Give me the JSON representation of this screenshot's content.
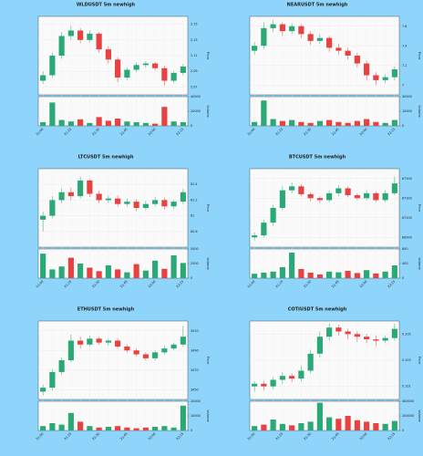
{
  "chart_data": [
    {
      "type": "candlestick",
      "title": "WLDUSDT 5m newhigh",
      "ylabel": "Price",
      "volume_label": "Volume",
      "grid": true,
      "up_color": "#2aa876",
      "down_color": "#e8413f",
      "categories": [
        "21:00",
        null,
        null,
        "21:15",
        null,
        null,
        "21:30",
        null,
        null,
        "21:45",
        null,
        null,
        "22:00",
        null,
        null,
        "22:15"
      ],
      "open": [
        2.078,
        2.085,
        2.11,
        2.135,
        2.142,
        2.13,
        2.138,
        2.118,
        2.105,
        2.082,
        2.092,
        2.098,
        2.1,
        2.094,
        2.078,
        2.088
      ],
      "high": [
        2.09,
        2.114,
        2.14,
        2.148,
        2.145,
        2.142,
        2.14,
        2.122,
        2.108,
        2.095,
        2.101,
        2.103,
        2.102,
        2.097,
        2.09,
        2.099
      ],
      "low": [
        2.074,
        2.082,
        2.106,
        2.13,
        2.126,
        2.127,
        2.114,
        2.1,
        2.076,
        2.079,
        2.089,
        2.095,
        2.091,
        2.072,
        2.075,
        2.085
      ],
      "close": [
        2.085,
        2.11,
        2.135,
        2.142,
        2.13,
        2.138,
        2.118,
        2.105,
        2.082,
        2.092,
        2.098,
        2.1,
        2.094,
        2.078,
        2.088,
        2.096
      ],
      "volume": [
        5000,
        32000,
        8000,
        6000,
        9000,
        4000,
        12000,
        7000,
        10000,
        6000,
        5000,
        4000,
        3000,
        26000,
        6000,
        5000
      ],
      "ylim": [
        2.06,
        2.16
      ],
      "yticks": [
        2.07,
        2.09,
        2.11,
        2.13,
        2.15
      ],
      "volume_ylim": [
        0,
        40000
      ],
      "volume_yticks": [
        0,
        20000,
        40000
      ]
    },
    {
      "type": "candlestick",
      "title": "NEARUSDT 5m newhigh",
      "ylabel": "Price",
      "volume_label": "Volume",
      "grid": true,
      "up_color": "#2aa876",
      "down_color": "#e8413f",
      "categories": [
        "21:00",
        null,
        null,
        "21:15",
        null,
        null,
        "21:30",
        null,
        null,
        "21:45",
        null,
        null,
        "22:00",
        null,
        null,
        "22:15"
      ],
      "open": [
        7.35,
        7.4,
        7.58,
        7.62,
        7.55,
        7.6,
        7.52,
        7.45,
        7.48,
        7.38,
        7.35,
        7.3,
        7.22,
        7.1,
        7.05,
        7.08
      ],
      "high": [
        7.44,
        7.64,
        7.66,
        7.64,
        7.63,
        7.62,
        7.55,
        7.52,
        7.5,
        7.42,
        7.38,
        7.33,
        7.25,
        7.13,
        7.11,
        7.19
      ],
      "low": [
        7.31,
        7.37,
        7.54,
        7.5,
        7.52,
        7.48,
        7.41,
        7.42,
        7.34,
        7.31,
        7.26,
        7.18,
        7.05,
        7.0,
        7.02,
        7.05
      ],
      "close": [
        7.4,
        7.58,
        7.62,
        7.55,
        7.6,
        7.52,
        7.45,
        7.48,
        7.38,
        7.35,
        7.3,
        7.22,
        7.1,
        7.05,
        7.08,
        7.16
      ],
      "volume": [
        4000,
        26000,
        7000,
        5000,
        6000,
        4000,
        3000,
        5000,
        6000,
        4000,
        3000,
        5000,
        7000,
        4000,
        3000,
        6000
      ],
      "ylim": [
        6.9,
        7.7
      ],
      "yticks": [
        7.0,
        7.2,
        7.4,
        7.6
      ],
      "volume_ylim": [
        0,
        30000
      ],
      "volume_yticks": [
        0,
        15000,
        30000
      ]
    },
    {
      "type": "candlestick",
      "title": "LTCUSDT 5m newhigh",
      "ylabel": "Price",
      "volume_label": "Volume",
      "grid": true,
      "up_color": "#2aa876",
      "down_color": "#e8413f",
      "categories": [
        "21:00",
        null,
        null,
        "21:15",
        null,
        null,
        "21:30",
        null,
        null,
        "21:45",
        null,
        null,
        "22:00",
        null,
        null,
        "22:15"
      ],
      "open": [
        80.95,
        81.0,
        81.2,
        81.3,
        81.25,
        81.45,
        81.28,
        81.2,
        81.22,
        81.15,
        81.18,
        81.1,
        81.15,
        81.2,
        81.12,
        81.18
      ],
      "high": [
        81.05,
        81.25,
        81.35,
        81.36,
        81.5,
        81.47,
        81.32,
        81.26,
        81.26,
        81.22,
        81.21,
        81.19,
        81.24,
        81.23,
        81.2,
        81.34
      ],
      "low": [
        80.8,
        80.97,
        81.16,
        81.2,
        81.22,
        81.24,
        81.16,
        81.16,
        81.12,
        81.12,
        81.06,
        81.07,
        81.12,
        81.08,
        81.09,
        81.15
      ],
      "close": [
        81.0,
        81.2,
        81.3,
        81.25,
        81.45,
        81.28,
        81.2,
        81.22,
        81.15,
        81.18,
        81.1,
        81.15,
        81.2,
        81.12,
        81.18,
        81.3
      ],
      "volume": [
        4200,
        1500,
        2000,
        3500,
        2500,
        1800,
        1200,
        2200,
        1500,
        1000,
        2400,
        1300,
        3000,
        1600,
        3900,
        2600
      ],
      "ylim": [
        80.6,
        81.6
      ],
      "yticks": [
        80.8,
        81.0,
        81.2,
        81.4
      ],
      "volume_ylim": [
        0,
        5000
      ],
      "volume_yticks": [
        0,
        2500,
        5000
      ]
    },
    {
      "type": "candlestick",
      "title": "BTCUSDT 5m newhigh",
      "ylabel": "Price",
      "volume_label": "Volume",
      "grid": true,
      "up_color": "#2aa876",
      "down_color": "#e8413f",
      "categories": [
        "21:00",
        null,
        null,
        "21:15",
        null,
        null,
        "21:30",
        null,
        null,
        "21:45",
        null,
        null,
        "22:00",
        null,
        null,
        "22:15"
      ],
      "open": [
        66900,
        66920,
        67050,
        67200,
        67380,
        67420,
        67340,
        67300,
        67280,
        67350,
        67400,
        67330,
        67300,
        67350,
        67280,
        67350
      ],
      "high": [
        66950,
        67080,
        67230,
        67420,
        67460,
        67440,
        67360,
        67320,
        67380,
        67430,
        67420,
        67350,
        67380,
        67370,
        67380,
        67520
      ],
      "low": [
        66870,
        66900,
        67020,
        67180,
        67350,
        67320,
        67270,
        67250,
        67260,
        67320,
        67310,
        67280,
        67280,
        67260,
        67260,
        67330
      ],
      "close": [
        66920,
        67050,
        67200,
        67380,
        67420,
        67340,
        67300,
        67280,
        67350,
        67400,
        67330,
        67300,
        67350,
        67280,
        67350,
        67450
      ],
      "volume": [
        120,
        150,
        180,
        300,
        700,
        250,
        150,
        100,
        180,
        160,
        200,
        140,
        220,
        130,
        180,
        350
      ],
      "ylim": [
        66800,
        67600
      ],
      "yticks": [
        66900,
        67100,
        67300,
        67500
      ],
      "volume_ylim": [
        0,
        800
      ],
      "volume_yticks": [
        0,
        400,
        800
      ]
    },
    {
      "type": "candlestick",
      "title": "ETHUSDT 5m newhigh",
      "ylabel": "Price",
      "volume_label": "Volume",
      "grid": true,
      "up_color": "#2aa876",
      "down_color": "#e8413f",
      "categories": [
        "21:00",
        null,
        null,
        "21:15",
        null,
        null,
        "21:30",
        null,
        null,
        "21:45",
        null,
        null,
        "22:00",
        null,
        null,
        "22:15"
      ],
      "open": [
        3448,
        3452,
        3468,
        3480,
        3500,
        3496,
        3502,
        3498,
        3500,
        3494,
        3490,
        3486,
        3482,
        3488,
        3492,
        3496
      ],
      "high": [
        3455,
        3471,
        3483,
        3506,
        3504,
        3505,
        3504,
        3502,
        3502,
        3496,
        3492,
        3488,
        3490,
        3495,
        3498,
        3515
      ],
      "low": [
        3444,
        3449,
        3465,
        3478,
        3492,
        3494,
        3496,
        3495,
        3492,
        3488,
        3484,
        3480,
        3480,
        3486,
        3490,
        3494
      ],
      "close": [
        3452,
        3468,
        3480,
        3500,
        3496,
        3502,
        3498,
        3500,
        3494,
        3490,
        3486,
        3482,
        3488,
        3492,
        3496,
        3504
      ],
      "volume": [
        3000,
        5000,
        4000,
        12000,
        6000,
        3000,
        2000,
        2500,
        3000,
        2000,
        1500,
        2000,
        2500,
        3000,
        2000,
        17000
      ],
      "ylim": [
        3440,
        3520
      ],
      "yticks": [
        3450,
        3470,
        3490,
        3510
      ],
      "volume_ylim": [
        0,
        20000
      ],
      "volume_yticks": [
        0,
        10000,
        20000
      ]
    },
    {
      "type": "candlestick",
      "title": "COTIUSDT 5m newhigh",
      "ylabel": "Price",
      "volume_label": "Volume",
      "grid": true,
      "up_color": "#2aa876",
      "down_color": "#e8413f",
      "categories": [
        "21:00",
        null,
        null,
        "21:15",
        null,
        null,
        "21:30",
        null,
        null,
        "21:45",
        null,
        null,
        "22:00",
        null,
        null,
        "22:15"
      ],
      "open": [
        0.101,
        0.1012,
        0.101,
        0.1015,
        0.1018,
        0.1016,
        0.1022,
        0.1035,
        0.1048,
        0.1055,
        0.1052,
        0.105,
        0.1048,
        0.1046,
        0.1045,
        0.1047
      ],
      "high": [
        0.1014,
        0.1014,
        0.1017,
        0.1021,
        0.102,
        0.1026,
        0.1038,
        0.1052,
        0.1058,
        0.1057,
        0.1054,
        0.1052,
        0.105,
        0.1049,
        0.1049,
        0.1058
      ],
      "low": [
        0.1006,
        0.1007,
        0.1008,
        0.1012,
        0.1013,
        0.1014,
        0.102,
        0.1032,
        0.1045,
        0.1049,
        0.1046,
        0.1044,
        0.1043,
        0.1041,
        0.1043,
        0.1045
      ],
      "close": [
        0.1012,
        0.101,
        0.1015,
        0.1018,
        0.1016,
        0.1022,
        0.1035,
        0.1048,
        0.1055,
        0.1052,
        0.105,
        0.1048,
        0.1046,
        0.1045,
        0.1047,
        0.1054
      ],
      "volume": [
        60000,
        80000,
        150000,
        90000,
        70000,
        100000,
        120000,
        380000,
        180000,
        160000,
        200000,
        140000,
        120000,
        100000,
        90000,
        130000
      ],
      "ylim": [
        0.1,
        0.106
      ],
      "yticks": [
        0.101,
        0.103,
        0.105
      ],
      "volume_ylim": [
        0,
        400000
      ],
      "volume_yticks": [
        0,
        200000,
        400000
      ]
    }
  ]
}
